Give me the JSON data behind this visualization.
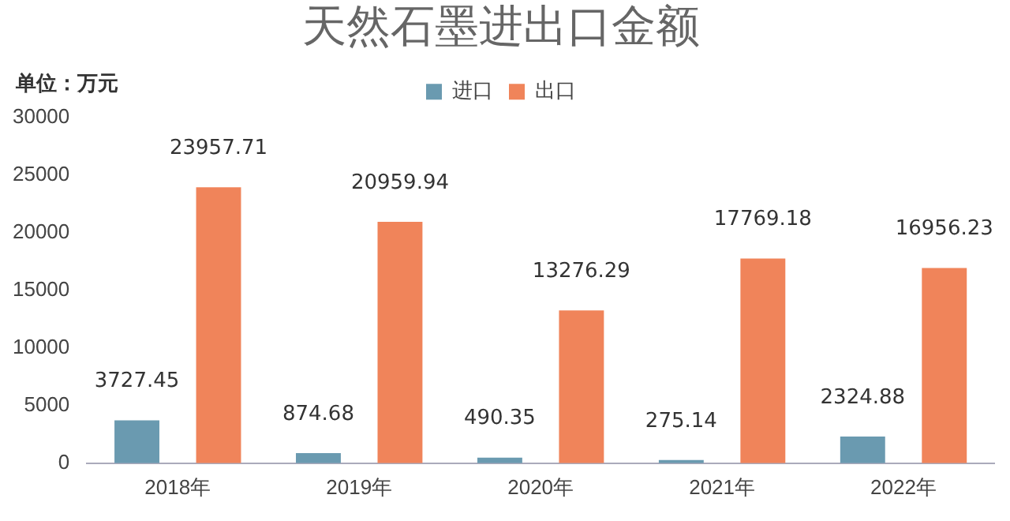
{
  "chart_data": {
    "type": "bar",
    "title": "天然石墨进出口金额",
    "annotations": [
      "单位：万元"
    ],
    "categories": [
      "2018年",
      "2019年",
      "2020年",
      "2021年",
      "2022年"
    ],
    "series": [
      {
        "name": "进口",
        "color": "#6a9ab0",
        "values": [
          3727.45,
          874.68,
          490.35,
          275.14,
          2324.88
        ]
      },
      {
        "name": "出口",
        "color": "#f0845a",
        "values": [
          23957.71,
          20959.94,
          13276.29,
          17769.18,
          16956.23
        ]
      }
    ],
    "ylim": [
      0,
      30000
    ],
    "yticks": [
      0,
      5000,
      10000,
      15000,
      20000,
      25000,
      30000
    ],
    "grid": false,
    "legend": "top",
    "data_labels": true
  }
}
